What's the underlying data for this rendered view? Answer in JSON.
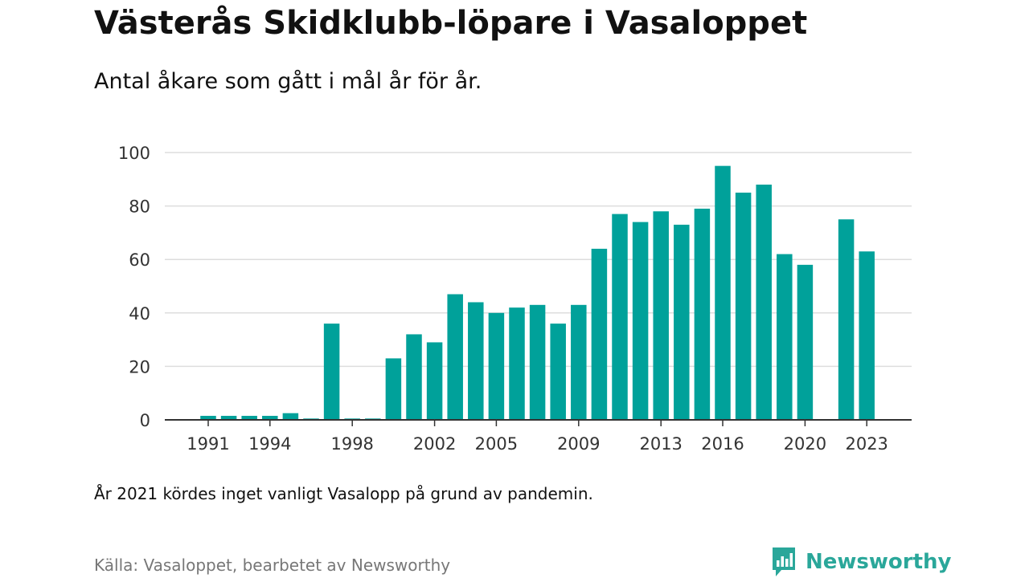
{
  "title": "Västerås Skidklubb-löpare i Vasaloppet",
  "subtitle": "Antal åkare som gått i mål år för år.",
  "note": "År 2021 kördes inget vanligt Vasalopp på grund av pandemin.",
  "source": "Källa: Vasaloppet, bearbetet av Newsworthy",
  "logo_text": "Newsworthy",
  "colors": {
    "bar": "#00a19a",
    "grid": "#dddddd",
    "axis": "#333333",
    "brand": "#2aa79a"
  },
  "chart_data": {
    "type": "bar",
    "x": [
      1991,
      1992,
      1993,
      1994,
      1995,
      1996,
      1997,
      1998,
      1999,
      2000,
      2001,
      2002,
      2003,
      2004,
      2005,
      2006,
      2007,
      2008,
      2009,
      2010,
      2011,
      2012,
      2013,
      2014,
      2015,
      2016,
      2017,
      2018,
      2019,
      2020,
      2021,
      2022,
      2023
    ],
    "values": [
      1.5,
      1.5,
      1.5,
      1.5,
      2.5,
      0.5,
      36,
      0.5,
      0.5,
      23,
      32,
      29,
      47,
      44,
      40,
      42,
      43,
      36,
      43,
      64,
      77,
      74,
      78,
      73,
      79,
      95,
      85,
      88,
      62,
      58,
      0,
      75,
      63
    ],
    "xticks": [
      1991,
      1994,
      1998,
      2002,
      2005,
      2009,
      2013,
      2016,
      2020,
      2023
    ],
    "yticks": [
      0,
      20,
      40,
      60,
      80,
      100
    ],
    "ylim": [
      0,
      100
    ],
    "grid": true,
    "legend": "none"
  }
}
